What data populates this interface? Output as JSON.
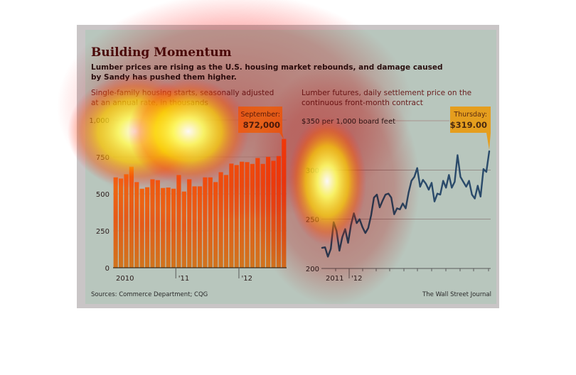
{
  "header": {
    "title": "Building Momentum",
    "dek_line1": "Lumber prices are rising as the U.S. housing market rebounds, and damage caused",
    "dek_line2": "by Sandy has pushed them higher."
  },
  "footer": {
    "sources": "Sources: Commerce Department; CQG",
    "credit": "The Wall Street Journal"
  },
  "colors": {
    "bar": "#d2691e",
    "line": "#2a4a6a",
    "callout": "#e89a1a",
    "title": "#4a0a0a"
  },
  "chart_data": [
    {
      "type": "bar",
      "title": "Single-family housing starts, seasonally adjusted at an annual rate, in thousands",
      "subtitle_line1": "Single-family housing starts, seasonally adjusted",
      "subtitle_line2": "at an annual rate, in thousands",
      "xlabel": "",
      "ylabel": "",
      "ylim": [
        0,
        1000
      ],
      "yticks": [
        0,
        250,
        500,
        750,
        1000
      ],
      "ytick_labels": [
        "0",
        "250",
        "500",
        "750",
        "1,000"
      ],
      "grid": true,
      "x_tick_labels": [
        "2010",
        "'11",
        "'12"
      ],
      "categories": [
        "Jan 2010",
        "Feb 2010",
        "Mar 2010",
        "Apr 2010",
        "May 2010",
        "Jun 2010",
        "Jul 2010",
        "Aug 2010",
        "Sep 2010",
        "Oct 2010",
        "Nov 2010",
        "Dec 2010",
        "Jan 2011",
        "Feb 2011",
        "Mar 2011",
        "Apr 2011",
        "May 2011",
        "Jun 2011",
        "Jul 2011",
        "Aug 2011",
        "Sep 2011",
        "Oct 2011",
        "Nov 2011",
        "Dec 2011",
        "Jan 2012",
        "Feb 2012",
        "Mar 2012",
        "Apr 2012",
        "May 2012",
        "Jun 2012",
        "Jul 2012",
        "Aug 2012",
        "Sep 2012"
      ],
      "values": [
        612,
        604,
        633,
        684,
        580,
        535,
        545,
        599,
        593,
        540,
        543,
        535,
        628,
        516,
        599,
        551,
        551,
        612,
        612,
        580,
        647,
        628,
        705,
        695,
        718,
        715,
        703,
        743,
        703,
        751,
        724,
        756,
        872
      ],
      "annotation": {
        "label": "September:",
        "value": "872,000"
      }
    },
    {
      "type": "line",
      "title": "Lumber futures, daily settlement price on the continuous front-month contract",
      "subtitle_line1": "Lumber futures, daily settlement price on the",
      "subtitle_line2": "continuous front-month contract",
      "xlabel": "",
      "ylabel": "",
      "ylim": [
        200,
        350
      ],
      "yticks": [
        200,
        250,
        300,
        350
      ],
      "ytick_labels": [
        "200",
        "250",
        "300",
        "$350 per 1,000 board feet"
      ],
      "grid": true,
      "x_tick_labels": [
        "2011",
        "'12"
      ],
      "series": [
        {
          "name": "Lumber futures",
          "x": [
            0,
            1,
            2,
            3,
            4,
            5,
            6,
            7,
            8,
            9,
            10,
            11,
            12,
            13,
            14,
            15,
            16,
            17,
            18,
            19,
            20,
            21,
            22,
            23,
            24,
            25,
            26,
            27,
            28,
            29,
            30,
            31,
            32,
            33,
            34,
            35,
            36,
            37,
            38,
            39,
            40,
            41,
            42,
            43,
            44,
            45,
            46,
            47,
            48,
            49,
            50,
            51,
            52,
            53,
            54,
            55,
            56,
            57,
            58
          ],
          "values": [
            221,
            221.5,
            212,
            220,
            247,
            238,
            218,
            232,
            240,
            226,
            244,
            256,
            246,
            250,
            242,
            236,
            241,
            254,
            272,
            275,
            262,
            269,
            275,
            276,
            272,
            255,
            261,
            260,
            266,
            261,
            277,
            289,
            293,
            302,
            283,
            290,
            286,
            280,
            287,
            268,
            276,
            275,
            289,
            282,
            295,
            282,
            288,
            315,
            293,
            288,
            283,
            289,
            275,
            271,
            284,
            273,
            301,
            298,
            319
          ]
        }
      ],
      "annotation": {
        "label": "Thursday:",
        "value": "$319.00"
      }
    }
  ]
}
